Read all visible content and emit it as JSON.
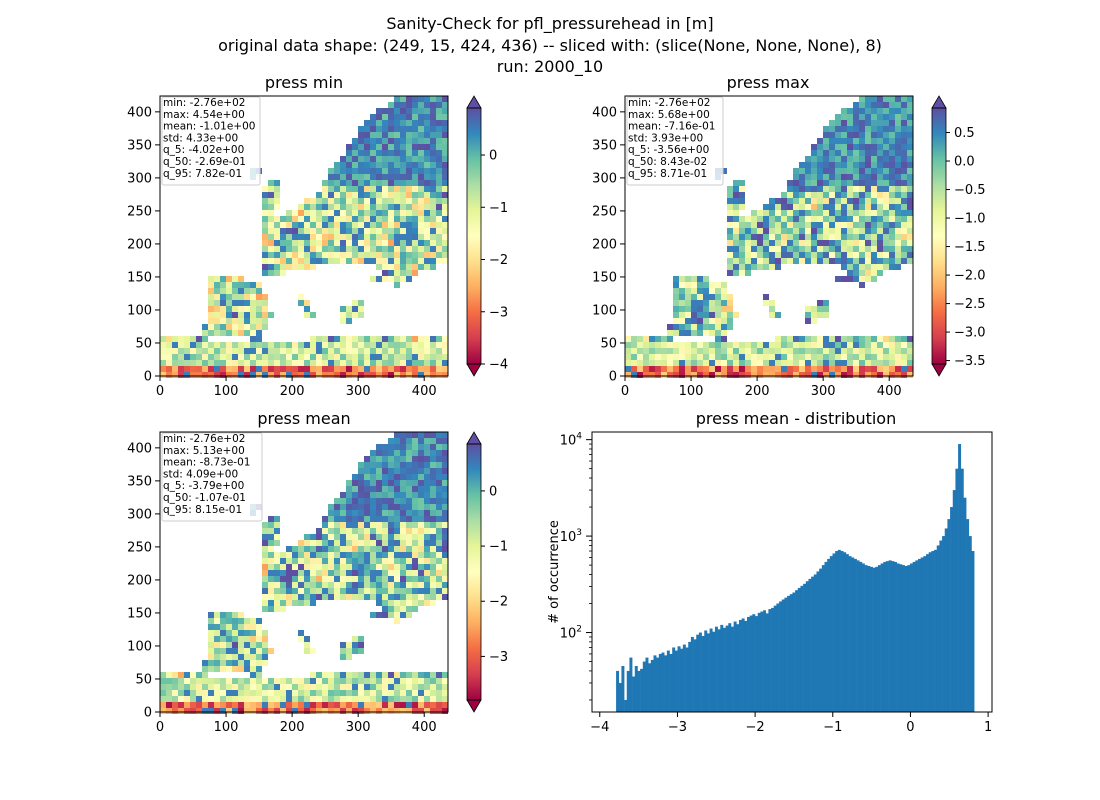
{
  "figure": {
    "title_lines": [
      "Sanity-Check for pfl_pressurehead in [m]",
      "original data shape: (249, 15, 424, 436) -- sliced with: (slice(None, None, None), 8)",
      "run: 2000_10"
    ]
  },
  "chart_data": [
    {
      "type": "heatmap",
      "title": "press min",
      "x_ticks": [
        "0",
        "100",
        "200",
        "300",
        "400"
      ],
      "y_ticks": [
        "0",
        "50",
        "100",
        "150",
        "200",
        "250",
        "300",
        "350",
        "400"
      ],
      "xlim": [
        0,
        436
      ],
      "ylim": [
        0,
        424
      ],
      "colorbar": {
        "min": -4.0,
        "max": 0.9,
        "ticks": [
          "0",
          "−1",
          "−2",
          "−3",
          "−4"
        ],
        "tick_values": [
          0,
          -1,
          -2,
          -3,
          -4
        ],
        "colormap": "Spectral"
      },
      "stats": [
        "min: -2.76e+02",
        "max: 4.54e+00",
        "mean: -1.01e+00",
        "std: 4.33e+00",
        "q_5: -4.02e+00",
        "q_50: -2.69e-01",
        "q_95: 7.82e-01"
      ]
    },
    {
      "type": "heatmap",
      "title": "press max",
      "x_ticks": [
        "0",
        "100",
        "200",
        "300",
        "400"
      ],
      "y_ticks": [
        "0",
        "50",
        "100",
        "150",
        "200",
        "250",
        "300",
        "350",
        "400"
      ],
      "xlim": [
        0,
        436
      ],
      "ylim": [
        0,
        424
      ],
      "colorbar": {
        "min": -3.56,
        "max": 0.93,
        "ticks": [
          "0.5",
          "0.0",
          "−0.5",
          "−1.0",
          "−1.5",
          "−2.0",
          "−2.5",
          "−3.0",
          "−3.5"
        ],
        "tick_values": [
          0.5,
          0,
          -0.5,
          -1.0,
          -1.5,
          -2.0,
          -2.5,
          -3.0,
          -3.5
        ],
        "colormap": "Spectral"
      },
      "stats": [
        "min: -2.76e+02",
        "max: 5.68e+00",
        "mean: -7.16e-01",
        "std: 3.93e+00",
        "q_5: -3.56e+00",
        "q_50: 8.43e-02",
        "q_95: 8.71e-01"
      ]
    },
    {
      "type": "heatmap",
      "title": "press mean",
      "x_ticks": [
        "0",
        "100",
        "200",
        "300",
        "400"
      ],
      "y_ticks": [
        "0",
        "50",
        "100",
        "150",
        "200",
        "250",
        "300",
        "350",
        "400"
      ],
      "xlim": [
        0,
        436
      ],
      "ylim": [
        0,
        424
      ],
      "colorbar": {
        "min": -3.79,
        "max": 0.85,
        "ticks": [
          "0",
          "−1",
          "−2",
          "−3"
        ],
        "tick_values": [
          0,
          -1,
          -2,
          -3
        ],
        "colormap": "Spectral"
      },
      "stats": [
        "min: -2.76e+02",
        "max: 5.13e+00",
        "mean: -8.73e-01",
        "std: 4.09e+00",
        "q_5: -3.79e+00",
        "q_50: -1.07e-01",
        "q_95: 8.15e-01"
      ]
    },
    {
      "type": "bar",
      "title": "press mean - distribution",
      "ylabel": "# of occurrence",
      "yscale": "log",
      "xlim": [
        -4.1,
        1.05
      ],
      "ylim": [
        15,
        12000
      ],
      "x_ticks": [
        {
          "v": -4,
          "label": "−4"
        },
        {
          "v": -3,
          "label": "−3"
        },
        {
          "v": -2,
          "label": "−2"
        },
        {
          "v": -1,
          "label": "−1"
        },
        {
          "v": 0,
          "label": "0"
        },
        {
          "v": 1,
          "label": "1"
        }
      ],
      "y_ticks": [
        {
          "v": 100,
          "label": "10^2"
        },
        {
          "v": 1000,
          "label": "10^3"
        },
        {
          "v": 10000,
          "label": "10^4"
        }
      ],
      "bar_color": "#1f77b4",
      "bin_range": [
        -3.79,
        0.82
      ],
      "counts": [
        40,
        30,
        45,
        20,
        40,
        55,
        35,
        45,
        40,
        42,
        50,
        55,
        48,
        52,
        58,
        55,
        60,
        62,
        58,
        65,
        60,
        70,
        65,
        72,
        68,
        75,
        70,
        80,
        90,
        85,
        95,
        100,
        92,
        105,
        98,
        110,
        102,
        115,
        108,
        120,
        112,
        118,
        125,
        115,
        130,
        122,
        135,
        140,
        132,
        145,
        150,
        155,
        148,
        160,
        165,
        170,
        158,
        175,
        180,
        190,
        200,
        210,
        220,
        230,
        240,
        250,
        260,
        275,
        290,
        305,
        320,
        340,
        360,
        380,
        400,
        430,
        460,
        500,
        540,
        580,
        620,
        660,
        700,
        720,
        700,
        680,
        650,
        620,
        600,
        580,
        560,
        540,
        520,
        500,
        490,
        480,
        470,
        480,
        500,
        520,
        540,
        550,
        560,
        550,
        540,
        520,
        510,
        500,
        490,
        500,
        520,
        540,
        560,
        580,
        600,
        620,
        650,
        680,
        700,
        720,
        800,
        900,
        1000,
        1200,
        1500,
        2000,
        3000,
        5000,
        9000,
        5000,
        2500,
        1500,
        1000,
        700
      ]
    }
  ]
}
